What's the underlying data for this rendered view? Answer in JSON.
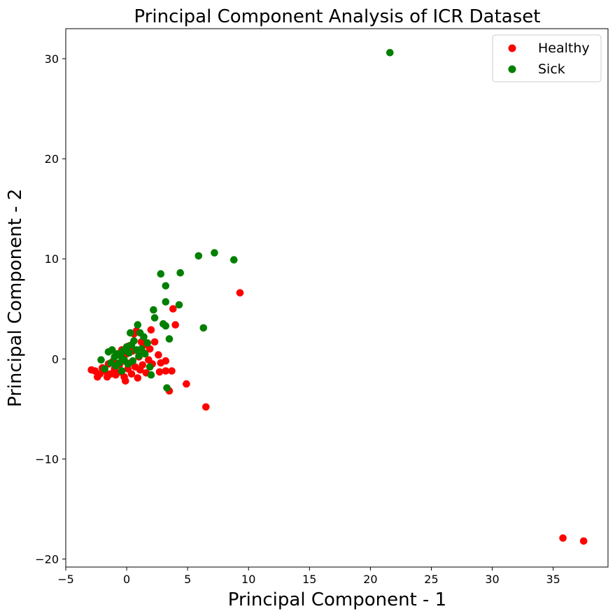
{
  "chart_data": {
    "type": "scatter",
    "title": "Principal Component Analysis of ICR Dataset",
    "xlabel": "Principal Component - 1",
    "ylabel": "Principal Component - 2",
    "xlim": [
      -5,
      39.5
    ],
    "ylim": [
      -20.8,
      33
    ],
    "xticks": [
      -5,
      0,
      5,
      10,
      15,
      20,
      25,
      30,
      35
    ],
    "yticks": [
      -20,
      -10,
      0,
      10,
      20,
      30
    ],
    "grid": false,
    "legend_position": "top-right",
    "series": [
      {
        "name": "Healthy",
        "color": "#ff0000",
        "points": [
          [
            -2.9,
            -1.1
          ],
          [
            -2.6,
            -1.2
          ],
          [
            -2.4,
            -1.8
          ],
          [
            -2.2,
            -1.5
          ],
          [
            -2.0,
            -0.9
          ],
          [
            -1.8,
            -1.2
          ],
          [
            -1.6,
            -1.8
          ],
          [
            -1.5,
            -0.5
          ],
          [
            -1.3,
            -1.5
          ],
          [
            -1.1,
            -0.2
          ],
          [
            -1.0,
            -1.0
          ],
          [
            -0.9,
            -1.6
          ],
          [
            -0.7,
            0.4
          ],
          [
            -0.6,
            -0.6
          ],
          [
            -0.5,
            -1.3
          ],
          [
            -0.4,
            0.9
          ],
          [
            -0.3,
            -0.2
          ],
          [
            -0.2,
            -1.8
          ],
          [
            -0.1,
            -2.2
          ],
          [
            0.0,
            0.5
          ],
          [
            0.1,
            -1.0
          ],
          [
            0.2,
            1.3
          ],
          [
            0.3,
            -0.4
          ],
          [
            0.4,
            -1.5
          ],
          [
            0.5,
            0.8
          ],
          [
            0.6,
            2.5
          ],
          [
            0.7,
            -0.8
          ],
          [
            0.8,
            2.8
          ],
          [
            0.9,
            -1.9
          ],
          [
            1.0,
            0.2
          ],
          [
            1.1,
            -1.1
          ],
          [
            1.2,
            1.7
          ],
          [
            1.3,
            -0.6
          ],
          [
            1.4,
            0.6
          ],
          [
            1.5,
            1.4
          ],
          [
            1.6,
            -1.4
          ],
          [
            1.8,
            -0.1
          ],
          [
            1.9,
            1.0
          ],
          [
            2.0,
            2.9
          ],
          [
            2.1,
            -0.5
          ],
          [
            2.3,
            1.7
          ],
          [
            2.6,
            0.4
          ],
          [
            2.7,
            -1.3
          ],
          [
            2.8,
            -0.4
          ],
          [
            3.2,
            -0.2
          ],
          [
            3.2,
            -1.2
          ],
          [
            3.5,
            -3.2
          ],
          [
            3.7,
            -1.2
          ],
          [
            3.8,
            5.0
          ],
          [
            4.0,
            3.4
          ],
          [
            4.9,
            -2.5
          ],
          [
            6.5,
            -4.8
          ],
          [
            9.3,
            6.6
          ],
          [
            35.8,
            -17.9
          ],
          [
            37.5,
            -18.2
          ]
        ]
      },
      {
        "name": "Sick",
        "color": "#008000",
        "points": [
          [
            -2.1,
            -0.1
          ],
          [
            -1.8,
            -1.0
          ],
          [
            -1.5,
            0.7
          ],
          [
            -1.3,
            -0.4
          ],
          [
            -1.2,
            0.9
          ],
          [
            -1.0,
            0.2
          ],
          [
            -0.9,
            -0.7
          ],
          [
            -0.8,
            0.5
          ],
          [
            -0.6,
            -0.4
          ],
          [
            -0.5,
            0.3
          ],
          [
            -0.4,
            -1.2
          ],
          [
            -0.3,
            0.8
          ],
          [
            -0.2,
            -0.1
          ],
          [
            0.0,
            1.2
          ],
          [
            0.1,
            -0.5
          ],
          [
            0.2,
            0.6
          ],
          [
            0.3,
            2.6
          ],
          [
            0.4,
            1.4
          ],
          [
            0.5,
            -0.2
          ],
          [
            0.6,
            1.8
          ],
          [
            0.8,
            0.9
          ],
          [
            0.9,
            3.4
          ],
          [
            1.0,
            0.3
          ],
          [
            1.1,
            2.6
          ],
          [
            1.2,
            1.0
          ],
          [
            1.4,
            2.2
          ],
          [
            1.5,
            0.5
          ],
          [
            1.7,
            1.6
          ],
          [
            1.9,
            -0.8
          ],
          [
            2.0,
            -1.6
          ],
          [
            2.2,
            4.9
          ],
          [
            2.3,
            4.1
          ],
          [
            2.8,
            8.5
          ],
          [
            3.0,
            3.5
          ],
          [
            3.2,
            5.7
          ],
          [
            3.2,
            3.3
          ],
          [
            3.2,
            7.3
          ],
          [
            3.3,
            -2.9
          ],
          [
            3.5,
            2.0
          ],
          [
            4.3,
            5.4
          ],
          [
            4.4,
            8.6
          ],
          [
            5.9,
            10.3
          ],
          [
            6.3,
            3.1
          ],
          [
            7.2,
            10.6
          ],
          [
            8.8,
            9.9
          ],
          [
            21.6,
            30.6
          ]
        ]
      }
    ]
  }
}
